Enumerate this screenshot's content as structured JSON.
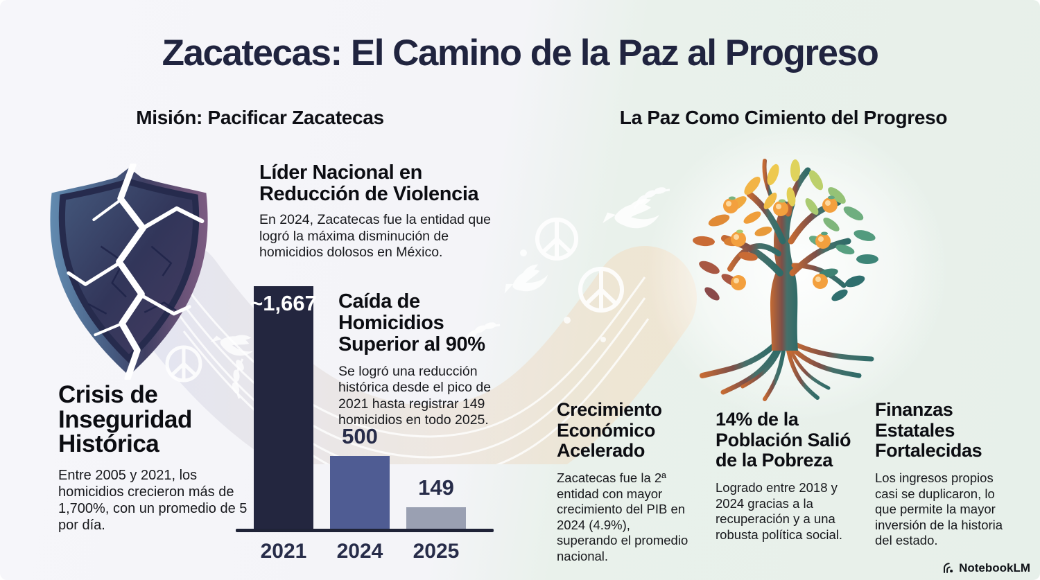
{
  "title": "Zacatecas: El Camino de la Paz al Progreso",
  "left_section": {
    "header": "Misión: Pacificar Zacatecas",
    "crisis": {
      "heading": "Crisis de Inseguridad Histórica",
      "body": "Entre 2005 y 2021, los homicidios crecieron más de 1,700%, con un promedio de 5 por día."
    },
    "lider": {
      "heading": "Líder Nacional en Reducción de Violencia",
      "body": "En 2024, Zacatecas fue la entidad que logró la máxima disminución de homicidios dolosos en México."
    },
    "caida": {
      "heading": "Caída de Homicidios Superior al 90%",
      "body": "Se logró una reducción histórica desde el pico de 2021 hasta registrar 149 homicidios en todo 2025."
    }
  },
  "right_section": {
    "header": "La Paz Como Cimiento del Progreso",
    "columns": [
      {
        "heading": "Crecimiento Económico Acelerado",
        "body": "Zacatecas fue la 2ª entidad con mayor crecimiento del PIB en 2024 (4.9%), superando el promedio nacional."
      },
      {
        "heading": "14% de la Población Salió de la Pobreza",
        "body": "Logrado entre 2018 y 2024 gracias a la recuperación y a una robusta política social."
      },
      {
        "heading": "Finanzas Estatales Fortalecidas",
        "body": "Los ingresos propios casi se duplicaron, lo que permite la mayor inversión de la historia del estado."
      }
    ]
  },
  "chart_data": {
    "type": "bar",
    "categories": [
      "2021",
      "2024",
      "2025"
    ],
    "values": [
      1667,
      500,
      149
    ],
    "value_labels": [
      "~1,667",
      "500",
      "149"
    ],
    "label_inside": [
      true,
      false,
      false
    ],
    "bar_colors": [
      "#23263f",
      "#4f5c93",
      "#9aa0b2"
    ],
    "ylim": [
      0,
      1667
    ],
    "xlabel": "",
    "ylabel": "",
    "grid": false,
    "legend": "none"
  },
  "footer": {
    "brand": "NotebookLM"
  },
  "icons": {
    "broken_shield": "broken-shield-illustration",
    "peace_tree": "peace-tree-illustration",
    "peace_ribbon": "peace-ribbon-illustration",
    "brand_mark": "notebooklm-logo-icon"
  },
  "colors": {
    "title_navy": "#20243f",
    "heading_black": "#0c0d12",
    "body_text": "#17181c",
    "axis": "#1f2337",
    "bg_left": "#f5f5f9",
    "bg_right": "#e8f1ea",
    "bar_2021": "#23263f",
    "bar_2024": "#4f5c93",
    "bar_2025": "#9aa0b2"
  }
}
